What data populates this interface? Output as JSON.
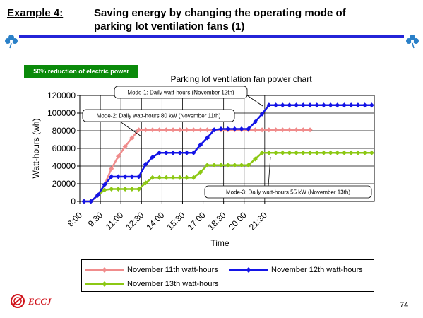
{
  "slide": {
    "example_label": "Example 4:",
    "title_line1": "Saving energy by changing the operating mode of",
    "title_line2": "parking lot ventilation fans (1)",
    "badge": "50% reduction of electric power",
    "page_number": "74",
    "logo_text": "ECCJ"
  },
  "colors": {
    "title_bar": "#2424d8",
    "badge_bg": "#0a8a0a",
    "logo": "#d0141c"
  },
  "chart_data": {
    "type": "line",
    "title": "Parking lot ventilation fan power chart",
    "xlabel": "Time",
    "ylabel": "Watt-hours (wh)",
    "ylim": [
      0,
      120000
    ],
    "yticks": [
      0,
      20000,
      40000,
      60000,
      80000,
      100000,
      120000
    ],
    "ytick_labels": [
      "0",
      "20000",
      "40000",
      "60000",
      "80000",
      "100000",
      "120000"
    ],
    "x_start": "8:00",
    "x_step_minutes": 30,
    "xtick_labels": [
      "8:00",
      "9:30",
      "11:00",
      "12:30",
      "14:00",
      "15:30",
      "17:00",
      "18:30",
      "20:00",
      "21:30"
    ],
    "grid": true,
    "legend_position": "bottom",
    "series": [
      {
        "name": "November 11th watt-hours",
        "color": "#f08c8c",
        "marker": "diamond",
        "values": [
          0,
          0,
          7000,
          19000,
          37000,
          51000,
          62000,
          72000,
          81000,
          81000,
          81000,
          81000,
          81000,
          81000,
          81000,
          81000,
          81000,
          81000,
          81000,
          81000,
          81000,
          81000,
          81000,
          81000,
          81000,
          81000,
          81000,
          81000,
          81000,
          81000,
          81000,
          81000,
          81000,
          81000
        ]
      },
      {
        "name": "November 12th watt-hours",
        "color": "#1414e6",
        "marker": "diamond",
        "values": [
          0,
          0,
          7000,
          19000,
          28000,
          28000,
          28000,
          28000,
          28000,
          42000,
          50000,
          55000,
          55000,
          55000,
          55000,
          55000,
          55000,
          64000,
          72000,
          81000,
          82000,
          82000,
          82000,
          82000,
          82000,
          90000,
          99000,
          109000,
          109000,
          109000,
          109000,
          109000,
          109000,
          109000,
          109000,
          109000,
          109000,
          109000,
          109000,
          109000,
          109000,
          109000,
          109000
        ]
      },
      {
        "name": "November 13th watt-hours",
        "color": "#8cc814",
        "marker": "diamond",
        "values": [
          0,
          0,
          7000,
          13000,
          14000,
          14000,
          14000,
          14000,
          14000,
          21000,
          27000,
          27000,
          27000,
          27000,
          27000,
          27000,
          27000,
          33000,
          41000,
          41000,
          41000,
          41000,
          41000,
          41000,
          41000,
          48000,
          55000,
          55000,
          55000,
          55000,
          55000,
          55000,
          55000,
          55000,
          55000,
          55000,
          55000,
          55000,
          55000,
          55000,
          55000,
          55000,
          55000
        ]
      }
    ],
    "annotations": [
      {
        "id": "mode1",
        "text": "Mode-1: Daily watt-hours (November 12th)"
      },
      {
        "id": "mode2",
        "text": "Mode-2: Daily watt-hours 80 kW (November 11th)"
      },
      {
        "id": "mode3",
        "text": "Mode-3: Daily watt-hours 55 kW (November 13th)"
      }
    ]
  }
}
